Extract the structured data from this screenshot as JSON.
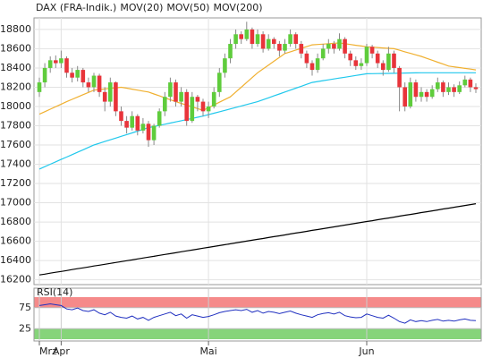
{
  "chart_data": [
    {
      "type": "candlestick",
      "name": "DAX (FRA-Indik.)",
      "name_color": "#e0501e",
      "up_color": "#5fcc3c",
      "down_color": "#e8343a",
      "categories": [
        "Mrz",
        null,
        null,
        null,
        "Apr",
        null,
        null,
        null,
        null,
        null,
        null,
        null,
        null,
        null,
        null,
        null,
        null,
        null,
        null,
        null,
        null,
        null,
        null,
        null,
        null,
        null,
        null,
        null,
        null,
        null,
        null,
        "Mai",
        null,
        null,
        null,
        null,
        null,
        null,
        null,
        null,
        null,
        null,
        null,
        null,
        null,
        null,
        null,
        null,
        null,
        null,
        null,
        null,
        null,
        null,
        null,
        null,
        null,
        null,
        null,
        null,
        "Jun",
        null,
        null,
        null,
        null,
        null,
        null,
        null,
        null,
        null,
        null,
        null,
        null,
        null,
        null,
        null,
        null,
        null,
        null,
        null,
        null
      ],
      "open": [
        18150,
        18250,
        18400,
        18480,
        18450,
        18500,
        18350,
        18300,
        18380,
        18250,
        18200,
        18320,
        18150,
        18050,
        18250,
        17950,
        17850,
        17780,
        17900,
        17750,
        17820,
        17650,
        17800,
        17950,
        18100,
        18250,
        18050,
        18150,
        17850,
        18100,
        18050,
        17950,
        18000,
        18150,
        18350,
        18500,
        18650,
        18750,
        18700,
        18800,
        18650,
        18750,
        18600,
        18700,
        18650,
        18580,
        18650,
        18750,
        18650,
        18550,
        18450,
        18380,
        18500,
        18600,
        18650,
        18600,
        18700,
        18550,
        18480,
        18420,
        18450,
        18620,
        18550,
        18450,
        18380,
        18550,
        18400,
        18200,
        18000,
        18250,
        18100,
        18150,
        18100,
        18180,
        18250,
        18150,
        18200,
        18150,
        18220,
        18280,
        18200
      ],
      "high": [
        18300,
        18450,
        18520,
        18530,
        18580,
        18520,
        18400,
        18420,
        18400,
        18300,
        18350,
        18340,
        18200,
        18300,
        18260,
        18000,
        17900,
        17950,
        17920,
        17880,
        17850,
        17820,
        17980,
        18150,
        18300,
        18280,
        18200,
        18180,
        18150,
        18120,
        18080,
        18050,
        18200,
        18400,
        18550,
        18700,
        18800,
        18780,
        18880,
        18820,
        18800,
        18780,
        18750,
        18720,
        18680,
        18700,
        18800,
        18770,
        18680,
        18580,
        18480,
        18550,
        18650,
        18700,
        18680,
        18760,
        18720,
        18580,
        18520,
        18500,
        18650,
        18640,
        18580,
        18480,
        18620,
        18580,
        18420,
        18250,
        18300,
        18280,
        18200,
        18180,
        18220,
        18300,
        18270,
        18250,
        18230,
        18260,
        18320,
        18300,
        18240
      ],
      "low": [
        18100,
        18200,
        18350,
        18400,
        18400,
        18300,
        18250,
        18260,
        18200,
        18150,
        18150,
        18100,
        17950,
        18000,
        17900,
        17800,
        17720,
        17750,
        17700,
        17720,
        17580,
        17600,
        17780,
        17900,
        18050,
        18000,
        18000,
        17800,
        17830,
        17950,
        17900,
        17880,
        17980,
        18100,
        18300,
        18450,
        18600,
        18650,
        18680,
        18600,
        18620,
        18560,
        18580,
        18600,
        18520,
        18550,
        18620,
        18600,
        18500,
        18400,
        18320,
        18350,
        18480,
        18550,
        18550,
        18580,
        18500,
        18420,
        18380,
        18380,
        18420,
        18500,
        18400,
        18320,
        18360,
        18350,
        17950,
        17950,
        17980,
        18050,
        18050,
        18050,
        18080,
        18150,
        18100,
        18120,
        18100,
        18130,
        18200,
        18150,
        18140
      ],
      "close": [
        18250,
        18400,
        18480,
        18450,
        18500,
        18350,
        18300,
        18380,
        18250,
        18200,
        18320,
        18150,
        18050,
        18250,
        17950,
        17850,
        17780,
        17900,
        17750,
        17820,
        17650,
        17800,
        17950,
        18100,
        18250,
        18050,
        18150,
        17850,
        18100,
        18050,
        17950,
        18000,
        18150,
        18350,
        18500,
        18650,
        18750,
        18700,
        18800,
        18650,
        18750,
        18600,
        18700,
        18650,
        18580,
        18650,
        18750,
        18650,
        18550,
        18450,
        18380,
        18500,
        18600,
        18650,
        18600,
        18700,
        18550,
        18480,
        18420,
        18450,
        18620,
        18550,
        18450,
        18380,
        18550,
        18400,
        18200,
        18000,
        18250,
        18100,
        18150,
        18100,
        18180,
        18250,
        18150,
        18200,
        18150,
        18220,
        18280,
        18200,
        18180
      ],
      "series": [
        {
          "name": "MOV(20)",
          "color": "#f0b030",
          "values": [
            17920,
            17946,
            17972,
            17998,
            18024,
            18050,
            18074,
            18098,
            18122,
            18146,
            18170,
            18176,
            18182,
            18188,
            18194,
            18200,
            18190,
            18180,
            18170,
            18160,
            18150,
            18130,
            18110,
            18090,
            18070,
            18050,
            18032,
            18014,
            17996,
            17978,
            17960,
            17988,
            18016,
            18044,
            18072,
            18100,
            18150,
            18200,
            18250,
            18300,
            18350,
            18390,
            18430,
            18470,
            18510,
            18550,
            18568,
            18586,
            18604,
            18622,
            18640,
            18644,
            18648,
            18652,
            18656,
            18660,
            18652,
            18644,
            18636,
            18628,
            18620,
            18616,
            18612,
            18608,
            18604,
            18600,
            18584,
            18568,
            18552,
            18536,
            18520,
            18500,
            18480,
            18460,
            18440,
            18420,
            18412,
            18404,
            18396,
            18388,
            18380
          ]
        },
        {
          "name": "MOV(50)",
          "color": "#20c8ec",
          "values": [
            17350,
            17375,
            17400,
            17425,
            17450,
            17475,
            17500,
            17525,
            17550,
            17575,
            17600,
            17618,
            17636,
            17654,
            17672,
            17690,
            17708,
            17726,
            17744,
            17762,
            17780,
            17792,
            17804,
            17816,
            17828,
            17840,
            17852,
            17864,
            17876,
            17888,
            17900,
            17915,
            17930,
            17945,
            17960,
            17975,
            17990,
            18005,
            18020,
            18035,
            18050,
            18070,
            18090,
            18110,
            18130,
            18150,
            18170,
            18190,
            18210,
            18230,
            18250,
            18259,
            18268,
            18277,
            18286,
            18295,
            18304,
            18313,
            18322,
            18331,
            18340,
            18341,
            18342,
            18343,
            18344,
            18345,
            18346,
            18347,
            18348,
            18349,
            18350,
            18350,
            18350,
            18350,
            18350,
            18350,
            18350,
            18350,
            18350,
            18350,
            18350
          ]
        },
        {
          "name": "MOV(200)",
          "color": "#000000",
          "values": [
            16250,
            16259,
            16269,
            16278,
            16287,
            16296,
            16306,
            16315,
            16324,
            16333,
            16343,
            16352,
            16361,
            16370,
            16380,
            16389,
            16398,
            16407,
            16417,
            16426,
            16435,
            16444,
            16454,
            16463,
            16472,
            16481,
            16491,
            16500,
            16509,
            16518,
            16528,
            16537,
            16546,
            16555,
            16565,
            16574,
            16583,
            16592,
            16602,
            16611,
            16620,
            16629,
            16639,
            16648,
            16657,
            16666,
            16676,
            16685,
            16694,
            16703,
            16713,
            16722,
            16731,
            16740,
            16750,
            16759,
            16768,
            16777,
            16787,
            16796,
            16805,
            16814,
            16824,
            16833,
            16842,
            16851,
            16861,
            16870,
            16879,
            16888,
            16898,
            16907,
            16916,
            16925,
            16935,
            16944,
            16953,
            16962,
            16972,
            16981,
            16990
          ]
        }
      ],
      "ylim": [
        16150,
        18920
      ],
      "yticks": [
        16200,
        16400,
        16600,
        16800,
        17000,
        17200,
        17400,
        17600,
        17800,
        18000,
        18200,
        18400,
        18600,
        18800
      ],
      "grid": true
    },
    {
      "type": "line",
      "title": "RSI(14)",
      "series": [
        {
          "color": "#2030c0",
          "values": [
            80,
            82,
            84,
            82,
            80,
            72,
            70,
            74,
            68,
            66,
            70,
            62,
            58,
            64,
            55,
            52,
            50,
            55,
            48,
            52,
            45,
            52,
            56,
            60,
            64,
            56,
            60,
            50,
            58,
            55,
            52,
            54,
            58,
            63,
            66,
            68,
            70,
            68,
            71,
            64,
            68,
            62,
            66,
            64,
            61,
            64,
            67,
            62,
            58,
            55,
            52,
            58,
            61,
            63,
            60,
            64,
            56,
            53,
            51,
            52,
            60,
            56,
            52,
            50,
            57,
            50,
            42,
            38,
            46,
            42,
            44,
            42,
            45,
            47,
            43,
            45,
            43,
            46,
            48,
            45,
            44
          ]
        }
      ],
      "ylim": [
        0,
        100
      ],
      "yticks": [
        75,
        25
      ],
      "bands": [
        {
          "from": 75,
          "to": 100,
          "color": "#f58a8a"
        },
        {
          "from": 0,
          "to": 25,
          "color": "#86d47a"
        }
      ]
    }
  ]
}
